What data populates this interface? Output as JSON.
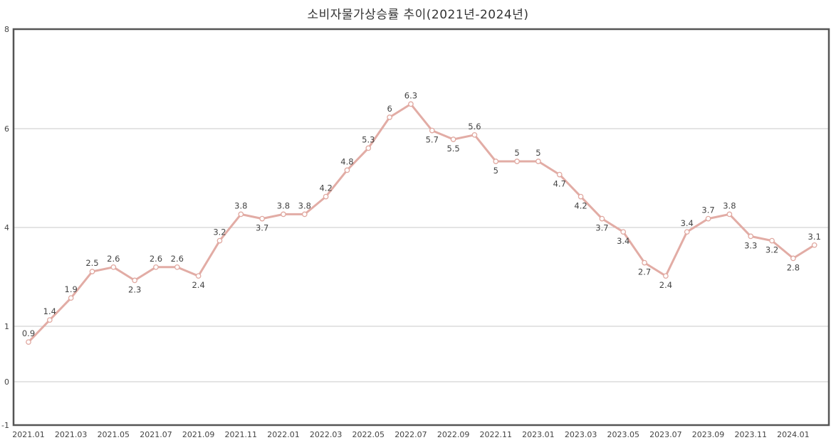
{
  "chart_data": {
    "type": "line",
    "title": "소비자물가상승률 추이(2021년-2024년)",
    "xlabel": "",
    "ylabel": "",
    "y_tick_labels": [
      "8",
      "6",
      "4",
      "1",
      "0",
      "-1"
    ],
    "x_tick_labels": [
      "2021.01",
      "2021.03",
      "2021.05",
      "2021.07",
      "2021.09",
      "2021.11",
      "2022.01",
      "2022.03",
      "2022.05",
      "2022.07",
      "2022.09",
      "2022.11",
      "2023.01",
      "2023.03",
      "2023.05",
      "2023.07",
      "2023.09",
      "2023.11",
      "2024.01"
    ],
    "grid": true,
    "legend": "none",
    "line_color": "#e0a8a0",
    "x": [
      "2021.01",
      "2021.02",
      "2021.03",
      "2021.04",
      "2021.05",
      "2021.06",
      "2021.07",
      "2021.08",
      "2021.09",
      "2021.10",
      "2021.11",
      "2021.12",
      "2022.01",
      "2022.02",
      "2022.03",
      "2022.04",
      "2022.05",
      "2022.06",
      "2022.07",
      "2022.08",
      "2022.09",
      "2022.10",
      "2022.11",
      "2022.12",
      "2023.01",
      "2023.02",
      "2023.03",
      "2023.04",
      "2023.05",
      "2023.06",
      "2023.07",
      "2023.08",
      "2023.09",
      "2023.10",
      "2023.11",
      "2023.12",
      "2024.01",
      "2024.02"
    ],
    "series": [
      {
        "name": "소비자물가상승률",
        "values": [
          0.9,
          1.4,
          1.9,
          2.5,
          2.6,
          2.3,
          2.6,
          2.6,
          2.4,
          3.2,
          3.8,
          3.7,
          3.8,
          3.8,
          4.2,
          4.8,
          5.3,
          6,
          6.3,
          5.7,
          5.5,
          5.6,
          5,
          5,
          5,
          4.7,
          4.2,
          3.7,
          3.4,
          2.7,
          2.4,
          3.4,
          3.7,
          3.8,
          3.3,
          3.2,
          2.8,
          3.1
        ]
      }
    ],
    "label_positions": [
      "above",
      "above",
      "above",
      "above",
      "above",
      "below",
      "above",
      "above",
      "below",
      "above",
      "above",
      "below",
      "above",
      "above",
      "above",
      "above",
      "above",
      "above",
      "above",
      "below",
      "below",
      "above",
      "below",
      "above",
      "above",
      "below",
      "below",
      "below",
      "below",
      "below",
      "below",
      "above",
      "above",
      "above",
      "below",
      "below",
      "below",
      "above"
    ]
  }
}
